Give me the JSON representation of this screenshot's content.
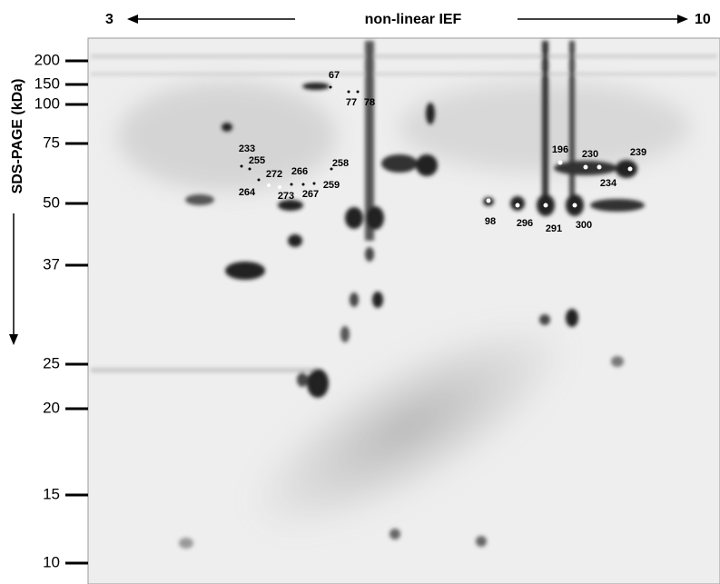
{
  "header": {
    "left_end": "3",
    "title": "non-linear IEF",
    "right_end": "10"
  },
  "y_axis": {
    "label": "SDS-PAGE (kDa)",
    "markers": [
      200,
      150,
      100,
      75,
      50,
      37,
      25,
      20,
      15,
      10
    ]
  },
  "spots": [
    67,
    77,
    78,
    233,
    255,
    272,
    266,
    258,
    264,
    273,
    267,
    259,
    98,
    296,
    291,
    300,
    196,
    230,
    239,
    234
  ]
}
